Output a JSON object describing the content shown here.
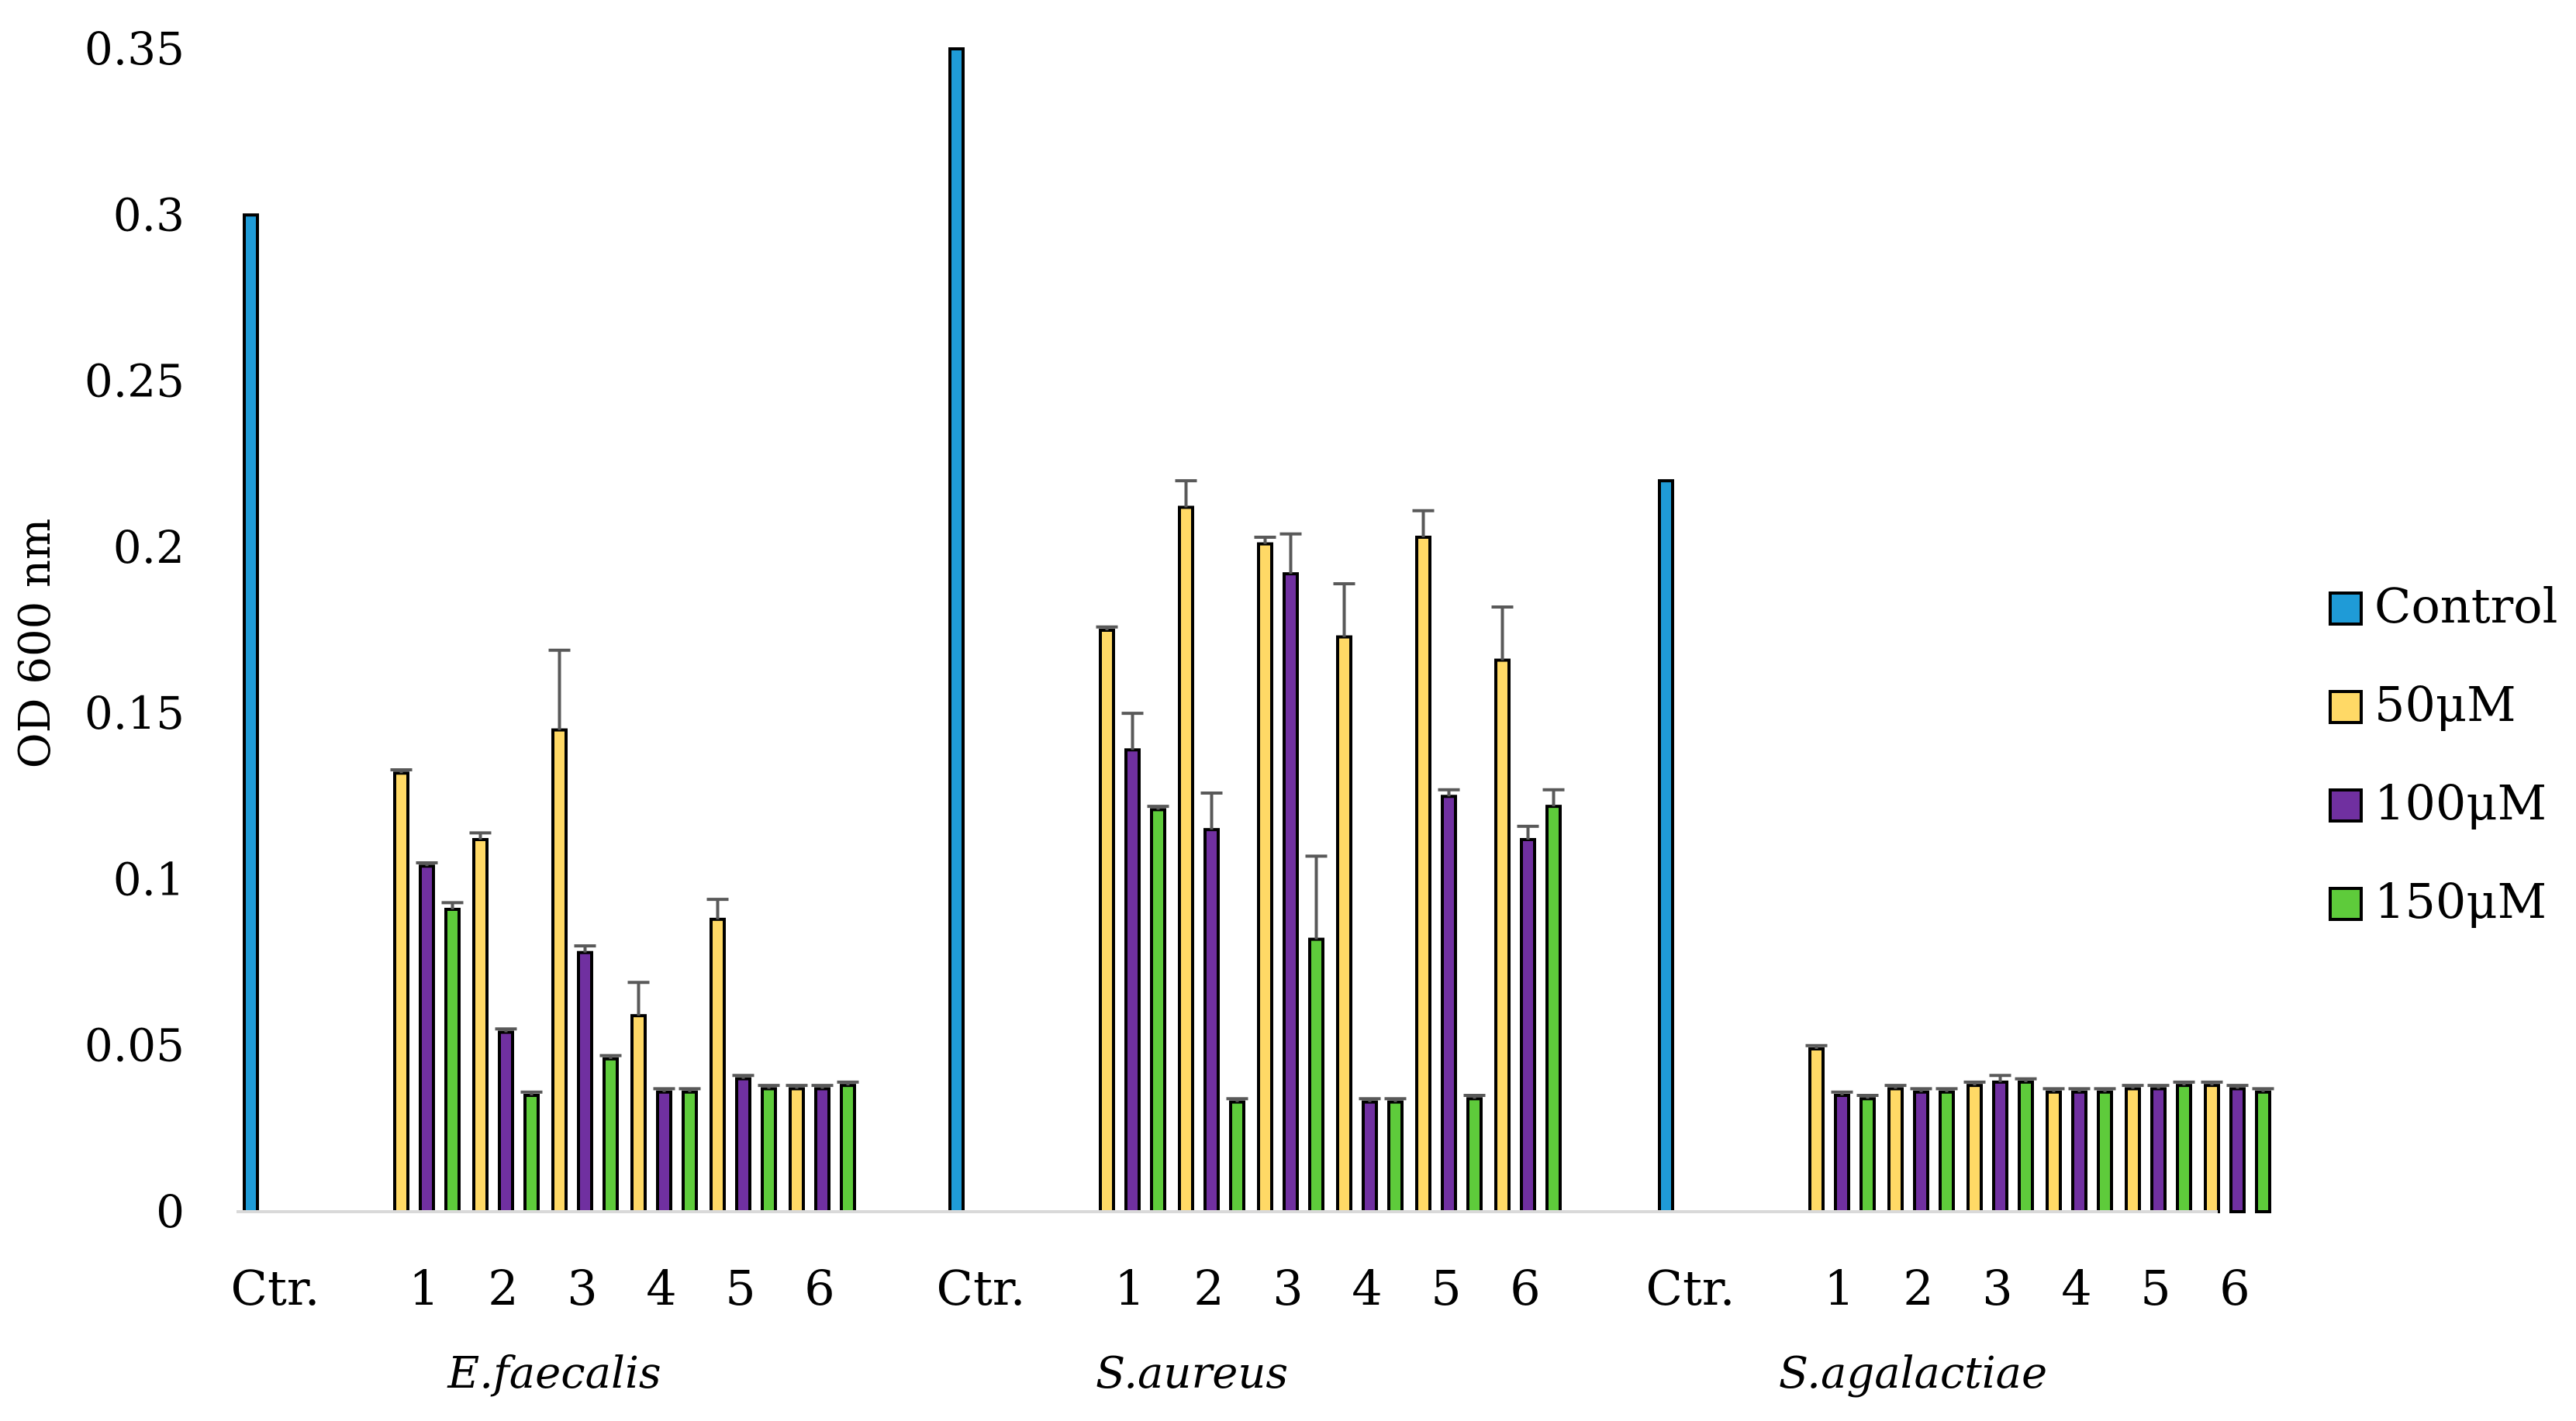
{
  "chart_data": {
    "type": "bar",
    "title": "",
    "xlabel": "",
    "ylabel": "OD 600 nm",
    "ylim": [
      0,
      0.35
    ],
    "yticks": [
      "0",
      "0.05",
      "0.1",
      "0.15",
      "0.2",
      "0.25",
      "0.3",
      "0.35"
    ],
    "legend_position": "right",
    "grid": false,
    "series": [
      {
        "name": "Control",
        "color": "#1f9bd7"
      },
      {
        "name": "50μM",
        "color": "#ffd966"
      },
      {
        "name": "100μM",
        "color": "#7030a0"
      },
      {
        "name": "150μM",
        "color": "#5ecb3b"
      }
    ],
    "groups": [
      {
        "name": "E.faecalis",
        "control": 0.3,
        "categories": [
          "Ctr.",
          "1",
          "2",
          "3",
          "4",
          "5",
          "6"
        ],
        "values": {
          "50μM": [
            0.132,
            0.112,
            0.145,
            0.059,
            0.088,
            0.037
          ],
          "100μM": [
            0.104,
            0.054,
            0.078,
            0.036,
            0.04,
            0.037
          ],
          "150μM": [
            0.091,
            0.035,
            0.046,
            0.036,
            0.037,
            0.038
          ]
        },
        "errors": {
          "50μM": [
            0.001,
            0.002,
            0.024,
            0.01,
            0.006,
            0.001
          ],
          "100μM": [
            0.001,
            0.001,
            0.002,
            0.001,
            0.001,
            0.001
          ],
          "150μM": [
            0.002,
            0.001,
            0.001,
            0.001,
            0.001,
            0.001
          ]
        }
      },
      {
        "name": "S.aureus",
        "control": 0.35,
        "categories": [
          "Ctr.",
          "1",
          "2",
          "3",
          "4",
          "5",
          "6"
        ],
        "values": {
          "50μM": [
            0.175,
            0.212,
            0.201,
            0.173,
            0.203,
            0.166
          ],
          "100μM": [
            0.139,
            0.115,
            0.192,
            0.033,
            0.125,
            0.112
          ],
          "150μM": [
            0.121,
            0.033,
            0.082,
            0.033,
            0.034,
            0.122
          ]
        },
        "errors": {
          "50μM": [
            0.001,
            0.008,
            0.002,
            0.016,
            0.008,
            0.016
          ],
          "100μM": [
            0.011,
            0.011,
            0.012,
            0.001,
            0.002,
            0.004
          ],
          "150μM": [
            0.001,
            0.001,
            0.025,
            0.001,
            0.001,
            0.005
          ]
        }
      },
      {
        "name": "S.agalactiae",
        "control": 0.22,
        "categories": [
          "Ctr.",
          "1",
          "2",
          "3",
          "4",
          "5",
          "6"
        ],
        "values": {
          "50μM": [
            0.049,
            0.037,
            0.038,
            0.036,
            0.037,
            0.038
          ],
          "100μM": [
            0.035,
            0.036,
            0.039,
            0.036,
            0.037,
            0.037
          ],
          "150μM": [
            0.034,
            0.036,
            0.039,
            0.036,
            0.038,
            0.036
          ]
        },
        "errors": {
          "50μM": [
            0.001,
            0.001,
            0.001,
            0.001,
            0.001,
            0.001
          ],
          "100μM": [
            0.001,
            0.001,
            0.002,
            0.001,
            0.001,
            0.001
          ],
          "150μM": [
            0.001,
            0.001,
            0.001,
            0.001,
            0.001,
            0.001
          ]
        }
      }
    ]
  }
}
